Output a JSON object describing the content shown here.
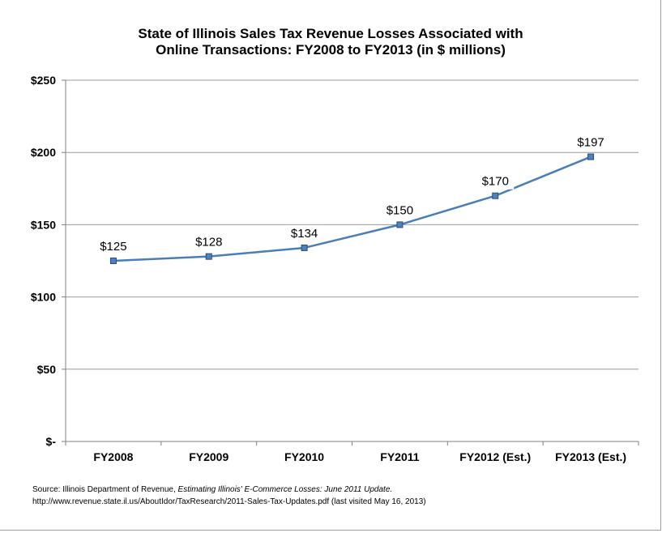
{
  "chart_data": {
    "type": "line",
    "title_line1": "State of Illinois Sales Tax Revenue Losses Associated with",
    "title_line2": "Online Transactions: FY2008 to FY2013 (in $ millions)",
    "categories": [
      "FY2008",
      "FY2009",
      "FY2010",
      "FY2011",
      "FY2012 (Est.)",
      "FY2013 (Est.)"
    ],
    "series": [
      {
        "values": [
          125,
          128,
          134,
          150,
          170,
          197
        ]
      }
    ],
    "data_labels": [
      "$125",
      "$128",
      "$134",
      "$150",
      "$170",
      "$197"
    ],
    "y_ticks": [
      0,
      50,
      100,
      150,
      200,
      250
    ],
    "y_tick_labels": [
      "$-",
      "$50",
      "$100",
      "$150",
      "$200",
      "$250"
    ],
    "ylim": [
      0,
      250
    ],
    "xlabel": "",
    "ylabel": "",
    "grid": true,
    "legend": "none",
    "line_color": "#4a7ebb",
    "marker_color": "#4f81bd",
    "marker_edge_color": "#2a4c7d",
    "grid_color": "#999999"
  },
  "source": {
    "prefix": "Source: Illinois Department of Revenue,",
    "italic": "Estimating Illinois' E-Commerce Losses: June 2011 Update.",
    "url_line": "http://www.revenue.state.il.us/AboutIdor/TaxResearch/2011-Sales-Tax-Updates.pdf (last  visited May 16, 2013)"
  }
}
